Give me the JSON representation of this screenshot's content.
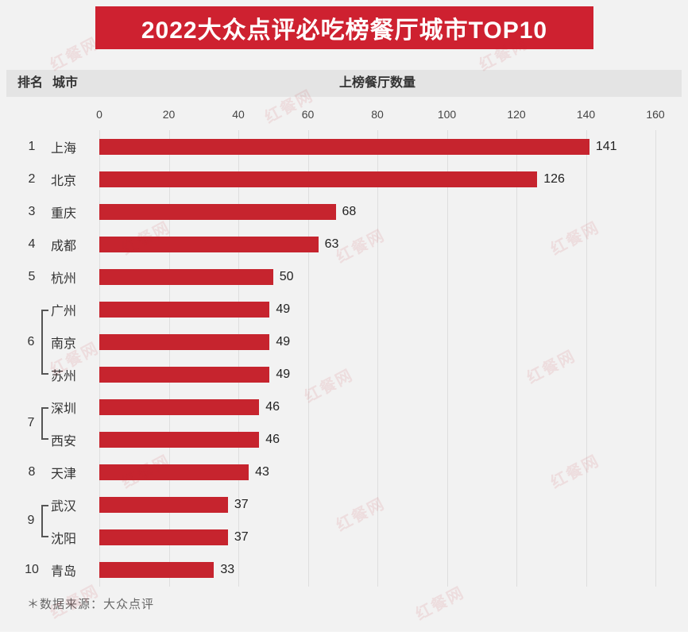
{
  "page_title": "2022大众点评必吃榜餐厅城市TOP10",
  "table_header": {
    "rank": "排名",
    "city": "城市",
    "count": "上榜餐厅数量"
  },
  "footer_note": "＊数据来源：大众点评",
  "watermark_text": "红餐网",
  "colors": {
    "banner_red": "#ce2130",
    "bar_red": "#c6242e",
    "page_background": "#f2f2f2",
    "header_band": "#e4e4e4"
  },
  "chart_data": {
    "type": "bar",
    "orientation": "horizontal",
    "title": "2022大众点评必吃榜餐厅城市TOP10",
    "value_axis_label": "上榜餐厅数量",
    "xlim": [
      0,
      160
    ],
    "xticks": [
      0,
      20,
      40,
      60,
      80,
      100,
      120,
      140,
      160
    ],
    "categories": [
      "上海",
      "北京",
      "重庆",
      "成都",
      "杭州",
      "广州",
      "南京",
      "苏州",
      "深圳",
      "西安",
      "天津",
      "武汉",
      "沈阳",
      "青岛"
    ],
    "values": [
      141,
      126,
      68,
      63,
      50,
      49,
      49,
      49,
      46,
      46,
      43,
      37,
      37,
      33
    ],
    "ranks": [
      "1",
      "2",
      "3",
      "4",
      "5",
      "6",
      "6",
      "6",
      "7",
      "7",
      "8",
      "9",
      "9",
      "10"
    ],
    "rank_groups": [
      {
        "rank": "6",
        "start_index": 5,
        "size": 3
      },
      {
        "rank": "7",
        "start_index": 8,
        "size": 2
      },
      {
        "rank": "9",
        "start_index": 11,
        "size": 2
      }
    ],
    "grid": true,
    "legend": false,
    "source_note": "＊数据来源：大众点评"
  }
}
